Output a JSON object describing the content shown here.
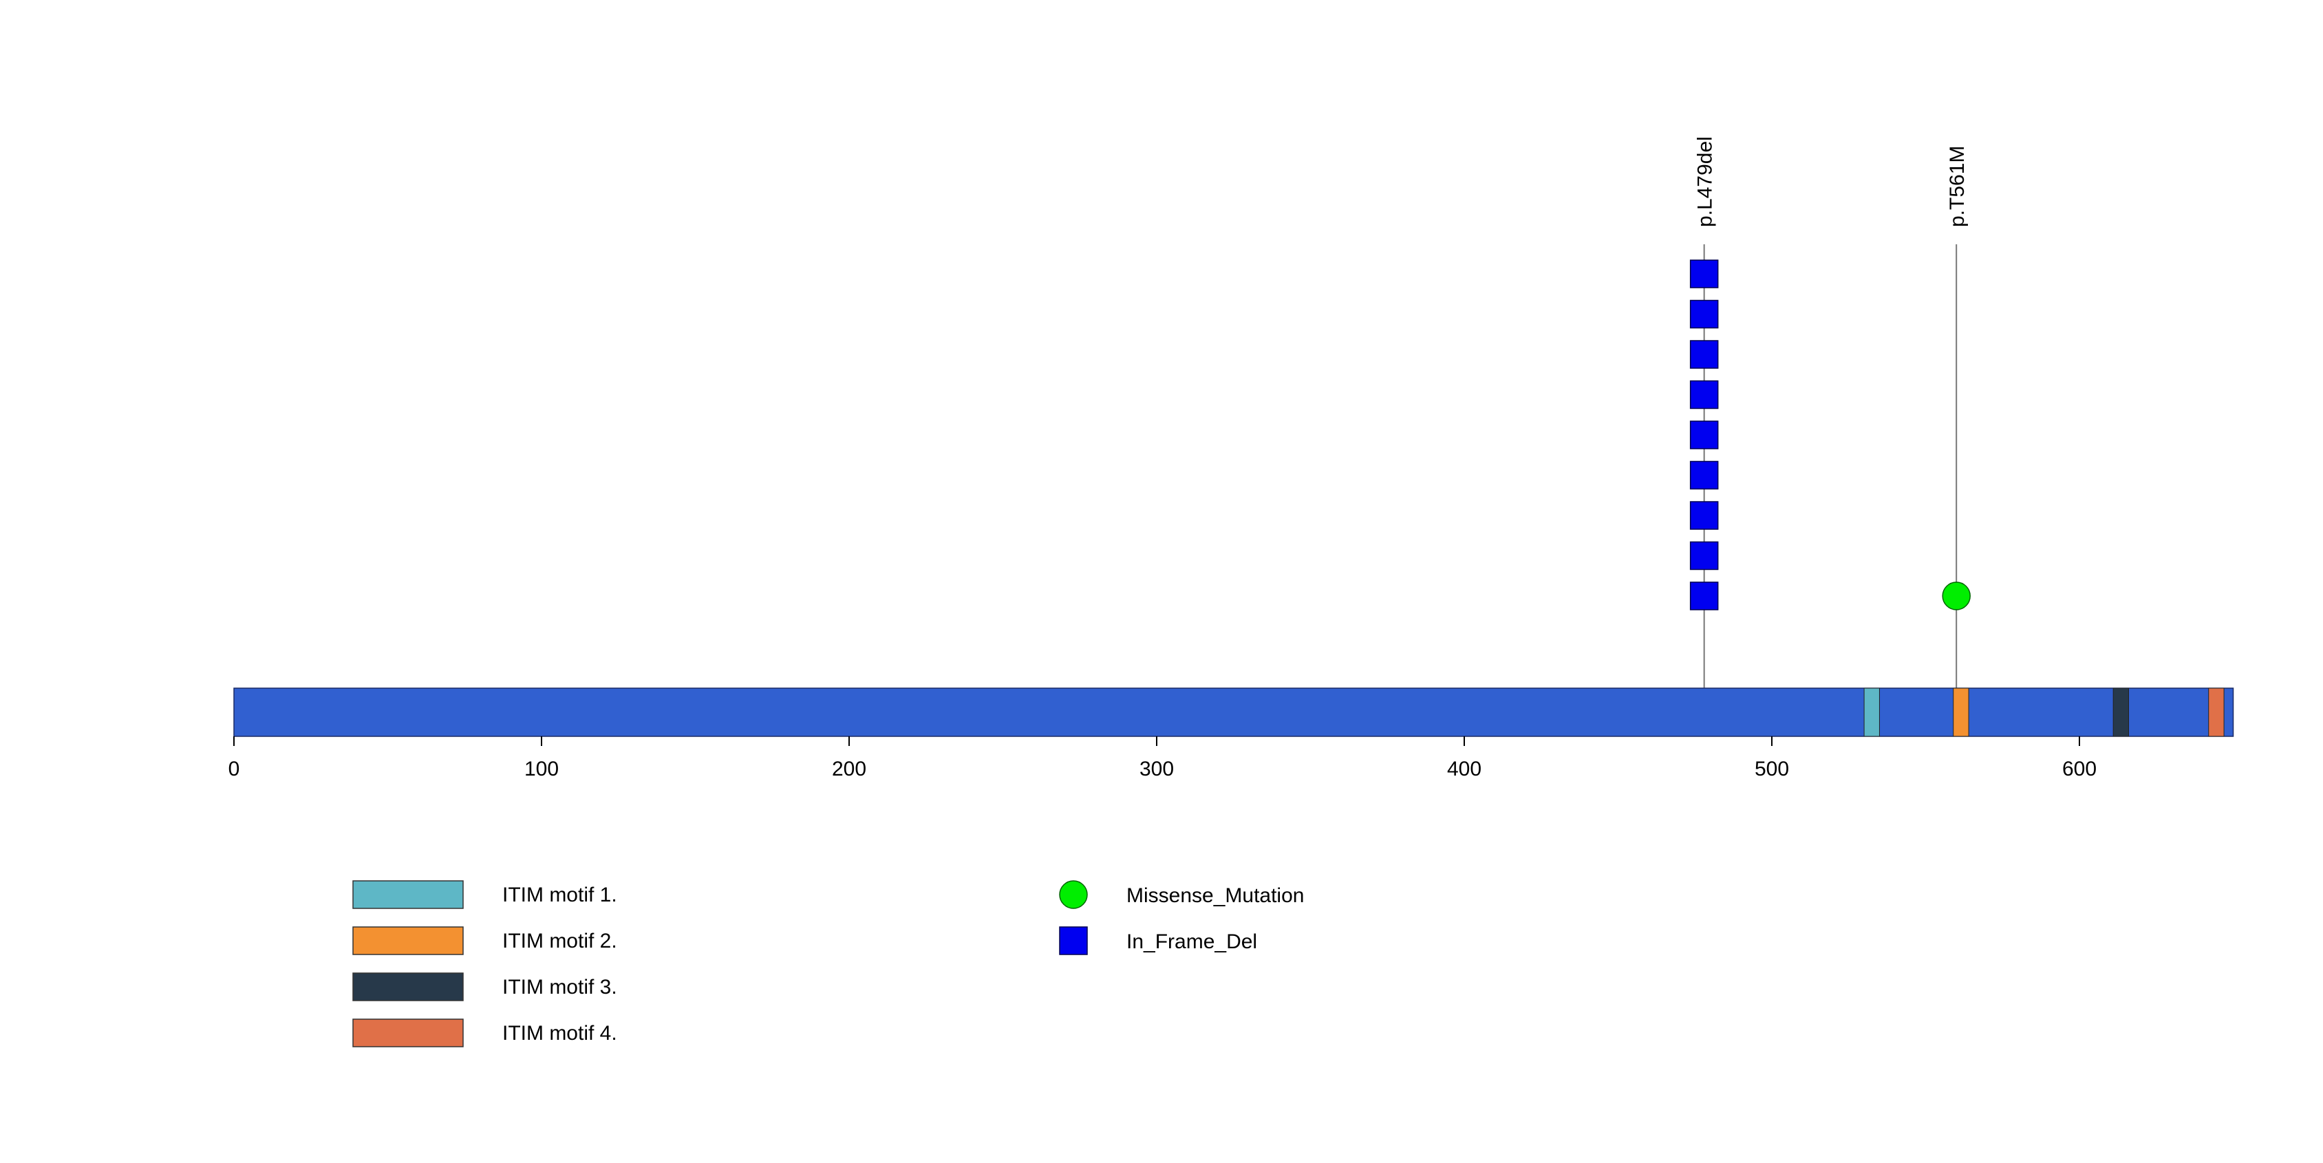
{
  "chart_data": {
    "type": "lollipop",
    "axis": {
      "range": [
        0,
        650
      ],
      "ticks": [
        0,
        100,
        200,
        300,
        400,
        500,
        600
      ],
      "tick_labels": [
        "0",
        "100",
        "200",
        "300",
        "400",
        "500",
        "600"
      ]
    },
    "protein_length": 650,
    "backbone_color": "#3160D0",
    "domains": [
      {
        "name": "ITIM motif 1.",
        "start": 530,
        "end": 535,
        "color": "#5EB7C6"
      },
      {
        "name": "ITIM motif 2.",
        "start": 559,
        "end": 564,
        "color": "#F39131"
      },
      {
        "name": "ITIM motif 3.",
        "start": 611,
        "end": 616,
        "color": "#27394A"
      },
      {
        "name": "ITIM motif 4.",
        "start": 642,
        "end": 647,
        "color": "#E07048"
      }
    ],
    "mutations": [
      {
        "label": "p.L479del",
        "position": 478,
        "count": 9,
        "type": "In_Frame_Del"
      },
      {
        "label": "p.T561M",
        "position": 560,
        "count": 1,
        "type": "Missense_Mutation"
      }
    ],
    "mutation_types": [
      {
        "name": "Missense_Mutation",
        "shape": "circle",
        "color": "#00EE00"
      },
      {
        "name": "In_Frame_Del",
        "shape": "square",
        "color": "#0000F0"
      }
    ]
  }
}
